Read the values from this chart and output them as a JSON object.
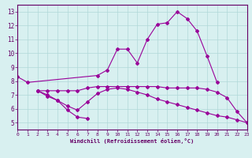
{
  "background_color": "#d8f0f0",
  "grid_color": "#b0d8d8",
  "line_color": "#990099",
  "xlabel": "Windchill (Refroidissement éolien,°C)",
  "xlim": [
    0,
    23
  ],
  "ylim": [
    4.5,
    13.5
  ],
  "yticks": [
    5,
    6,
    7,
    8,
    9,
    10,
    11,
    12,
    13
  ],
  "xticks": [
    0,
    1,
    2,
    3,
    4,
    5,
    6,
    7,
    8,
    9,
    10,
    11,
    12,
    13,
    14,
    15,
    16,
    17,
    18,
    19,
    20,
    21,
    22,
    23
  ],
  "lines": [
    {
      "x": [
        0,
        1,
        8,
        9,
        10,
        11,
        12,
        13,
        14,
        15,
        16,
        17,
        18,
        19,
        20
      ],
      "y": [
        8.3,
        7.9,
        8.4,
        8.8,
        10.3,
        10.3,
        9.3,
        11.0,
        12.1,
        12.2,
        13.0,
        12.5,
        11.6,
        9.8,
        7.9
      ]
    },
    {
      "x": [
        2,
        3,
        4,
        5,
        6,
        7,
        8,
        9,
        10,
        11,
        12,
        13,
        14,
        15,
        16,
        17,
        18,
        19,
        20,
        21,
        22,
        23
      ],
      "y": [
        7.3,
        7.3,
        7.3,
        7.3,
        7.3,
        7.5,
        7.6,
        7.6,
        7.6,
        7.6,
        7.6,
        7.6,
        7.6,
        7.5,
        7.5,
        7.5,
        7.5,
        7.4,
        7.2,
        6.8,
        5.8,
        5.0
      ]
    },
    {
      "x": [
        2,
        3,
        4,
        5,
        6,
        7
      ],
      "y": [
        7.3,
        6.9,
        6.6,
        5.9,
        5.4,
        5.3
      ]
    },
    {
      "x": [
        2,
        3,
        4,
        5,
        6,
        7,
        8,
        9,
        10,
        11,
        12,
        13,
        14,
        15,
        16,
        17,
        18,
        19,
        20,
        21,
        22,
        23
      ],
      "y": [
        7.3,
        7.0,
        6.6,
        6.2,
        5.9,
        6.5,
        7.1,
        7.4,
        7.5,
        7.4,
        7.2,
        7.0,
        6.7,
        6.5,
        6.3,
        6.1,
        5.9,
        5.7,
        5.5,
        5.4,
        5.2,
        5.0
      ]
    }
  ]
}
